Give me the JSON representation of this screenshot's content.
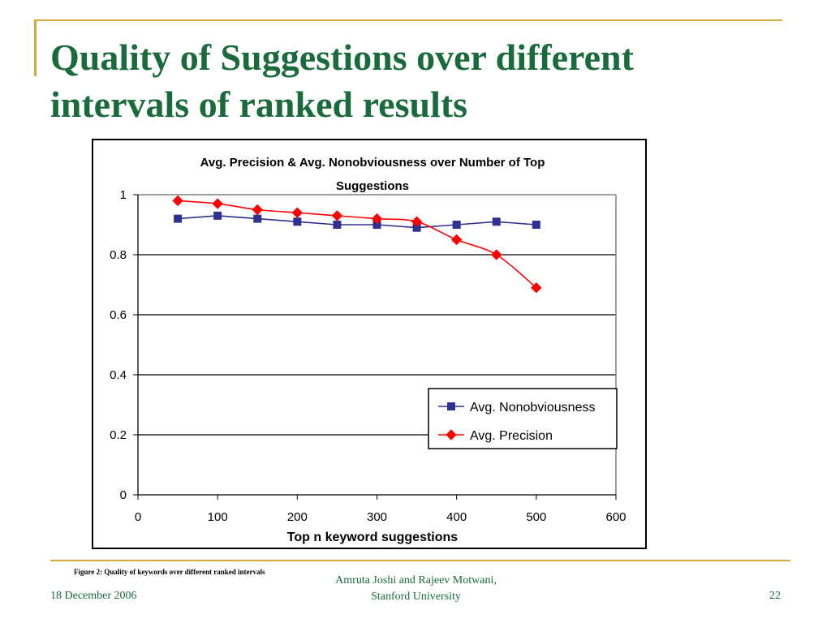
{
  "slide": {
    "title": "Quality of Suggestions over different intervals of ranked results",
    "caption": "Figure 2: Quality of keywords over different ranked intervals",
    "footer_date": "18 December 2006",
    "footer_author_line1": "Amruta Joshi and Rajeev Motwani,",
    "footer_author_line2": "Stanford University",
    "page_number": "22",
    "accent_color": "#d4a93a",
    "title_color": "#1a6b3c"
  },
  "chart_data": {
    "type": "line",
    "title": "Avg. Precision & Avg. Nonobviousness over Number of Top Suggestions",
    "xlabel": "Top n keyword suggestions",
    "ylabel": "",
    "xlim": [
      0,
      600
    ],
    "ylim": [
      0,
      1
    ],
    "x_ticks": [
      "0",
      "100",
      "200",
      "300",
      "400",
      "500",
      "600"
    ],
    "y_ticks": [
      "0",
      "0.2",
      "0.4",
      "0.6",
      "0.8",
      "1"
    ],
    "grid": true,
    "legend_position": "lower-right",
    "series": [
      {
        "name": "Avg. Nonobviousness",
        "color": "#2e3192",
        "marker": "square",
        "smooth": false,
        "x": [
          50,
          100,
          150,
          200,
          250,
          300,
          350,
          400,
          450,
          500
        ],
        "y": [
          0.92,
          0.93,
          0.92,
          0.91,
          0.9,
          0.9,
          0.89,
          0.9,
          0.91,
          0.9
        ]
      },
      {
        "name": "Avg. Precision",
        "color": "#ff0000",
        "marker": "diamond",
        "smooth": true,
        "x": [
          50,
          100,
          150,
          200,
          250,
          300,
          350,
          400,
          450,
          500
        ],
        "y": [
          0.98,
          0.97,
          0.95,
          0.94,
          0.93,
          0.92,
          0.91,
          0.85,
          0.8,
          0.69
        ]
      }
    ]
  }
}
